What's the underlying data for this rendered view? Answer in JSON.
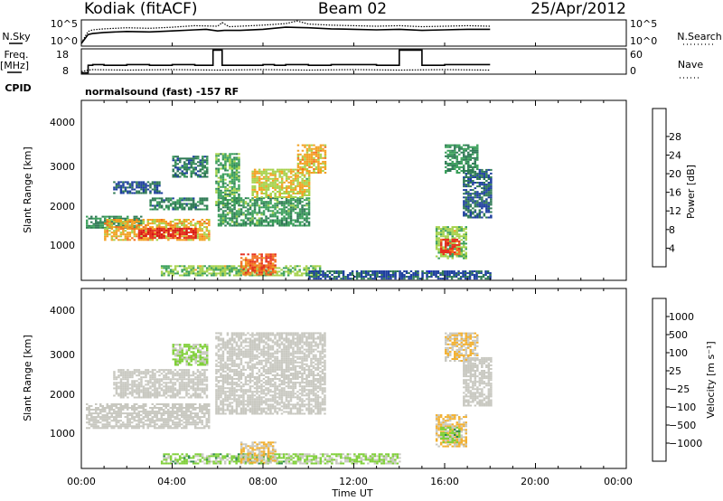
{
  "header": {
    "station": "Kodiak (fitACF)",
    "beam": "Beam 02",
    "date": "25/Apr/2012"
  },
  "chart_data": [
    {
      "id": "noise-panel",
      "type": "line",
      "left_label": "N.Sky",
      "right_label": "N.Search",
      "left_ticks": [
        "10^5",
        "10^0"
      ],
      "right_ticks": [
        "10^5",
        "10^0"
      ],
      "series": [
        {
          "name": "N.Sky",
          "style": "solid",
          "x": [
            0.0,
            0.3,
            0.5,
            1,
            2,
            3,
            4,
            5,
            5.5,
            6,
            6.3,
            7,
            8,
            9,
            10,
            11,
            12,
            13,
            14,
            15,
            16,
            17,
            18
          ],
          "y": [
            0.5,
            2.2,
            2.4,
            2.6,
            2.8,
            2.7,
            2.9,
            3.1,
            3.2,
            2.9,
            3.0,
            3.0,
            3.2,
            3.6,
            3.5,
            3.3,
            3.2,
            3.1,
            3.2,
            3.0,
            3.1,
            3.2,
            3.2
          ]
        },
        {
          "name": "N.Search",
          "style": "dotted",
          "x": [
            0.0,
            0.3,
            0.5,
            1,
            2,
            3,
            4,
            5,
            6,
            6.2,
            6.5,
            7,
            8,
            9,
            9.5,
            10,
            11,
            12,
            13,
            14,
            15,
            16,
            17,
            18
          ],
          "y": [
            0.6,
            2.8,
            3.1,
            3.3,
            3.5,
            3.4,
            3.6,
            3.9,
            3.8,
            4.5,
            3.7,
            3.8,
            4.0,
            4.3,
            4.8,
            4.2,
            4.0,
            3.9,
            3.8,
            3.9,
            3.7,
            3.8,
            3.9,
            3.8
          ]
        }
      ],
      "ylim": [
        0,
        5
      ],
      "xlim": [
        0,
        24
      ]
    },
    {
      "id": "freq-panel",
      "type": "line",
      "left_label": "Freq.",
      "left_unit": "[MHz]",
      "right_label": "Nave",
      "left_ticks": [
        "18",
        "8"
      ],
      "right_ticks": [
        "60",
        "0"
      ],
      "series": [
        {
          "name": "Freq.",
          "style": "solid",
          "x": [
            0,
            0.3,
            0.3,
            0.5,
            0.5,
            1,
            1,
            2,
            2,
            3,
            3,
            4,
            4,
            5,
            5,
            5.8,
            5.8,
            6.2,
            6.2,
            8,
            8,
            8.5,
            8.5,
            9,
            9,
            10,
            10,
            11,
            11,
            13,
            13,
            14,
            14,
            15,
            15,
            16,
            16,
            18
          ],
          "y": [
            8.5,
            8.5,
            11.5,
            11.5,
            11.8,
            11.8,
            11.5,
            11.5,
            11.8,
            11.8,
            11.5,
            11.5,
            11.8,
            11.8,
            11.5,
            11.5,
            17.5,
            17.5,
            11.5,
            11.5,
            11.8,
            11.8,
            11.5,
            11.5,
            11.8,
            11.8,
            11.5,
            11.5,
            11.8,
            11.8,
            11.5,
            11.5,
            17.5,
            17.5,
            11.5,
            11.5,
            11.8,
            11.8
          ]
        },
        {
          "name": "Nave",
          "style": "dotted",
          "x": [
            0,
            0.3,
            0.5,
            2,
            4,
            6,
            8,
            10,
            12,
            14,
            16,
            18
          ],
          "y": [
            9,
            9.6,
            9.8,
            9.6,
            9.8,
            9.6,
            9.8,
            9.6,
            9.8,
            9.6,
            9.8,
            9.6
          ]
        }
      ],
      "ylim": [
        8,
        18
      ],
      "xlim": [
        0,
        24
      ]
    },
    {
      "id": "power-panel",
      "type": "heatmap",
      "ylabel": "Slant Range [km]",
      "yticks": [
        "1000",
        "2000",
        "3000",
        "4000"
      ],
      "ylim": [
        180,
        4600
      ],
      "xlim": [
        0,
        24
      ],
      "colorbar_label": "Power [dB]",
      "colorbar_ticks": [
        "4",
        "8",
        "12",
        "16",
        "20",
        "24",
        "28"
      ],
      "colorbar_colors": [
        "#1515ee",
        "#1e3f9e",
        "#2f7a55",
        "#3a9f5a",
        "#a6d24b",
        "#f2a020",
        "#f27020",
        "#e63020",
        "#d61818"
      ],
      "vmin": 0,
      "vmax": 30,
      "regions": [
        {
          "t0": 0.2,
          "t1": 2.6,
          "r0": 1450,
          "r1": 1750,
          "v": 10
        },
        {
          "t0": 1.0,
          "t1": 5.6,
          "r0": 1150,
          "r1": 1650,
          "v": 18
        },
        {
          "t0": 2.5,
          "t1": 5.0,
          "r0": 1200,
          "r1": 1450,
          "v": 26
        },
        {
          "t0": 3.0,
          "t1": 5.5,
          "r0": 1900,
          "r1": 2200,
          "v": 9
        },
        {
          "t0": 1.4,
          "t1": 3.5,
          "r0": 2300,
          "r1": 2600,
          "v": 6
        },
        {
          "t0": 4.0,
          "t1": 5.5,
          "r0": 2700,
          "r1": 3200,
          "v": 8
        },
        {
          "t0": 5.9,
          "t1": 6.9,
          "r0": 2000,
          "r1": 3300,
          "v": 12
        },
        {
          "t0": 6.0,
          "t1": 10.0,
          "r0": 1500,
          "r1": 2200,
          "v": 11
        },
        {
          "t0": 7.5,
          "t1": 10.0,
          "r0": 2200,
          "r1": 2900,
          "v": 16
        },
        {
          "t0": 9.5,
          "t1": 10.7,
          "r0": 2800,
          "r1": 3500,
          "v": 18
        },
        {
          "t0": 3.5,
          "t1": 10.5,
          "r0": 280,
          "r1": 520,
          "v": 14
        },
        {
          "t0": 7.0,
          "t1": 8.5,
          "r0": 300,
          "r1": 800,
          "v": 22
        },
        {
          "t0": 10.0,
          "t1": 18.0,
          "r0": 200,
          "r1": 400,
          "v": 6
        },
        {
          "t0": 15.6,
          "t1": 16.9,
          "r0": 700,
          "r1": 1500,
          "v": 14
        },
        {
          "t0": 15.8,
          "t1": 16.6,
          "r0": 800,
          "r1": 1200,
          "v": 24
        },
        {
          "t0": 16.0,
          "t1": 17.4,
          "r0": 2800,
          "r1": 3500,
          "v": 10
        },
        {
          "t0": 16.8,
          "t1": 18.0,
          "r0": 1700,
          "r1": 2900,
          "v": 7
        }
      ]
    },
    {
      "id": "velocity-panel",
      "type": "heatmap",
      "ylabel": "Slant Range [km]",
      "yticks": [
        "1000",
        "2000",
        "3000",
        "4000"
      ],
      "ylim": [
        180,
        4600
      ],
      "xlim": [
        0,
        24
      ],
      "colorbar_label": "Velocity [m s⁻¹]",
      "colorbar_ticks": [
        "1000",
        "500",
        "100",
        "25",
        "−25",
        "−100",
        "−500",
        "−1000"
      ],
      "colorbar_colors": [
        "#1a2eb8",
        "#1c6aa0",
        "#2e8b4a",
        "#7fcf38",
        "#c8c8c0",
        "#f2b030",
        "#f07a18",
        "#e83818",
        "#e01010"
      ],
      "vmin": -1000,
      "vmax": 1000,
      "regions": [
        {
          "t0": 0.2,
          "t1": 5.6,
          "r0": 1150,
          "r1": 1750,
          "v": 0
        },
        {
          "t0": 1.4,
          "t1": 5.5,
          "r0": 1900,
          "r1": 2600,
          "v": 0
        },
        {
          "t0": 4.0,
          "t1": 5.5,
          "r0": 2700,
          "r1": 3200,
          "v": -150
        },
        {
          "t0": 5.9,
          "t1": 10.7,
          "r0": 1500,
          "r1": 3500,
          "v": 0
        },
        {
          "t0": 3.5,
          "t1": 9.0,
          "r0": 280,
          "r1": 520,
          "v": -200
        },
        {
          "t0": 9.0,
          "t1": 14.0,
          "r0": 280,
          "r1": 520,
          "v": -150
        },
        {
          "t0": 7.0,
          "t1": 8.5,
          "r0": 300,
          "r1": 800,
          "v": 120
        },
        {
          "t0": 15.6,
          "t1": 16.9,
          "r0": 700,
          "r1": 1500,
          "v": 150
        },
        {
          "t0": 15.8,
          "t1": 16.6,
          "r0": 800,
          "r1": 1200,
          "v": -200
        },
        {
          "t0": 16.0,
          "t1": 17.4,
          "r0": 2800,
          "r1": 3500,
          "v": 110
        },
        {
          "t0": 16.8,
          "t1": 18.0,
          "r0": 1700,
          "r1": 2900,
          "v": 0
        }
      ]
    }
  ],
  "cpid": {
    "label": "CPID",
    "text": "normalsound (fast) -157 RF"
  },
  "x_axis": {
    "label": "Time UT",
    "ticks": [
      "00:00",
      "04:00",
      "08:00",
      "12:00",
      "16:00",
      "20:00",
      "00:00"
    ]
  }
}
